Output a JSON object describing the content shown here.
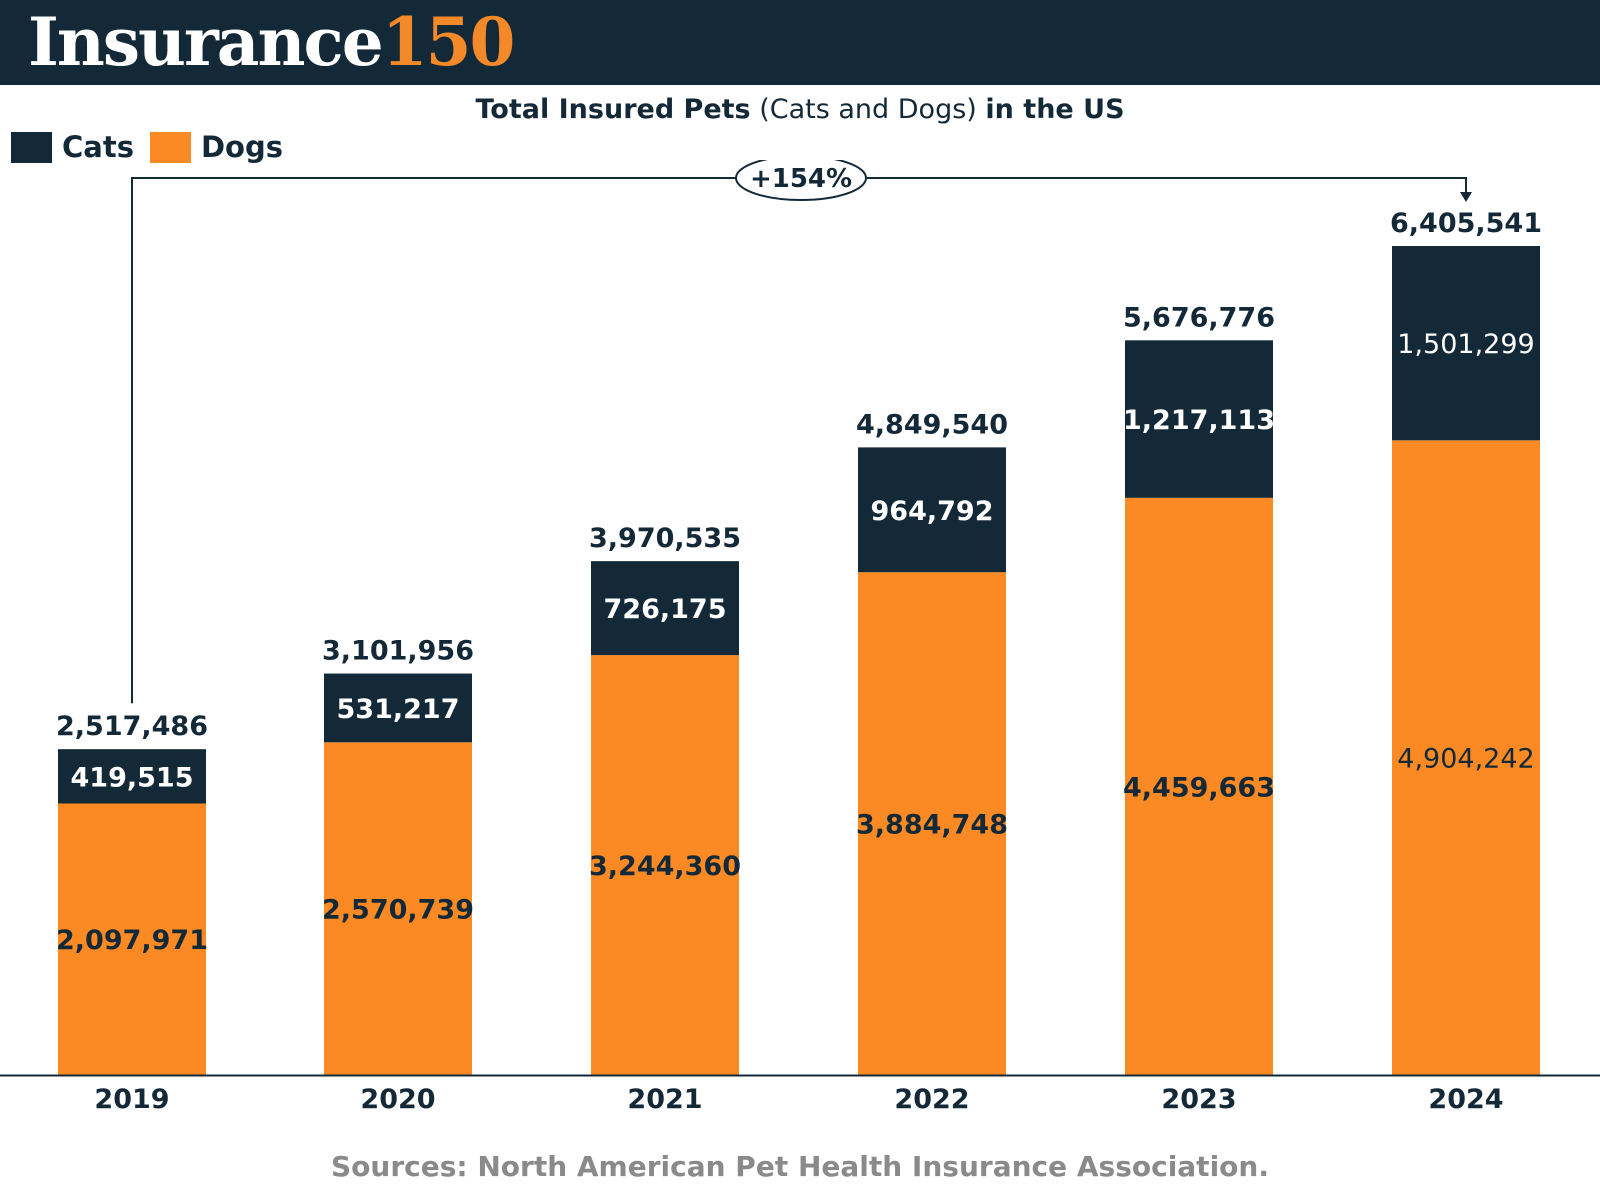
{
  "header": {
    "logo_word": "Insurance",
    "logo_number": "150",
    "background": "#142937",
    "accent": "#f4892a"
  },
  "title": {
    "bold_start": "Total Insured Pets",
    "regular_middle": "(Cats and Dogs)",
    "bold_end": "in the US"
  },
  "legend": [
    {
      "label": "Cats",
      "color": "#142937"
    },
    {
      "label": "Dogs",
      "color": "#fb8a24"
    }
  ],
  "growth_annotation": "+154%",
  "source": "Sources: North American Pet Health Insurance Association.",
  "chart_data": {
    "type": "bar",
    "stacked": true,
    "categories": [
      "2019",
      "2020",
      "2021",
      "2022",
      "2023",
      "2024"
    ],
    "series": [
      {
        "name": "Dogs",
        "color": "#fb8a24",
        "values": [
          2097971,
          2570739,
          3244360,
          3884748,
          4459663,
          4904242
        ],
        "labels": [
          "2,097,971",
          "2,570,739",
          "3,244,360",
          "3,884,748",
          "4,459,663",
          "4,904,242"
        ]
      },
      {
        "name": "Cats",
        "color": "#142937",
        "values": [
          419515,
          531217,
          726175,
          964792,
          1217113,
          1501299
        ],
        "labels": [
          "419,515",
          "531,217",
          "726,175",
          "964,792",
          "1,217,113",
          "1,501,299"
        ]
      }
    ],
    "totals": [
      2517486,
      3101956,
      3970535,
      4849540,
      5676776,
      6405541
    ],
    "total_labels": [
      "2,517,486",
      "3,101,956",
      "3,970,535",
      "4,849,540",
      "5,676,776",
      "6,405,541"
    ],
    "ylim": [
      0,
      6405541
    ],
    "grid": false,
    "legend_position": "top-left",
    "title": "Total Insured Pets (Cats and Dogs) in the US",
    "xlabel": "",
    "ylabel": ""
  }
}
